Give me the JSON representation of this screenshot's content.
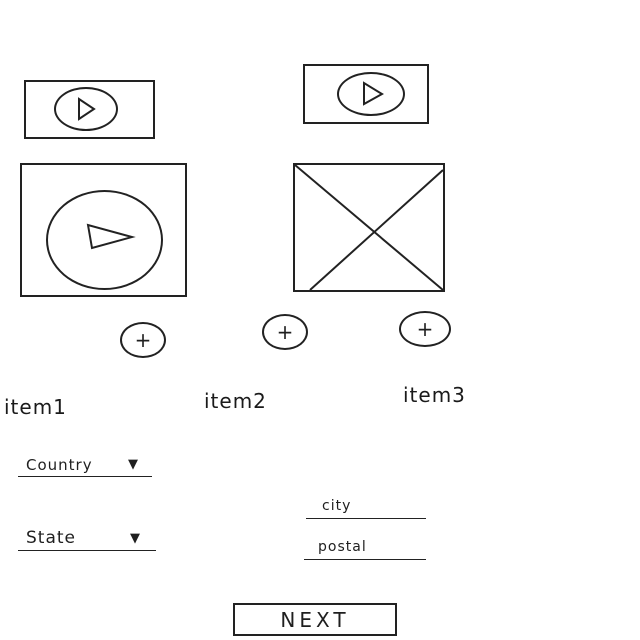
{
  "media": {
    "video_small_left_icon": "play-icon",
    "video_small_right_icon": "play-icon",
    "video_large_icon": "play-icon",
    "image_placeholder_icon": "image-placeholder-icon"
  },
  "items": [
    {
      "label": "item1",
      "add_symbol": "+"
    },
    {
      "label": "item2",
      "add_symbol": "+"
    },
    {
      "label": "item3",
      "add_symbol": "+"
    }
  ],
  "form": {
    "country_label": "Country",
    "state_label": "State",
    "dropdown_arrow": "▼",
    "city_placeholder": "city",
    "postal_placeholder": "postal"
  },
  "next_label": "NEXT"
}
